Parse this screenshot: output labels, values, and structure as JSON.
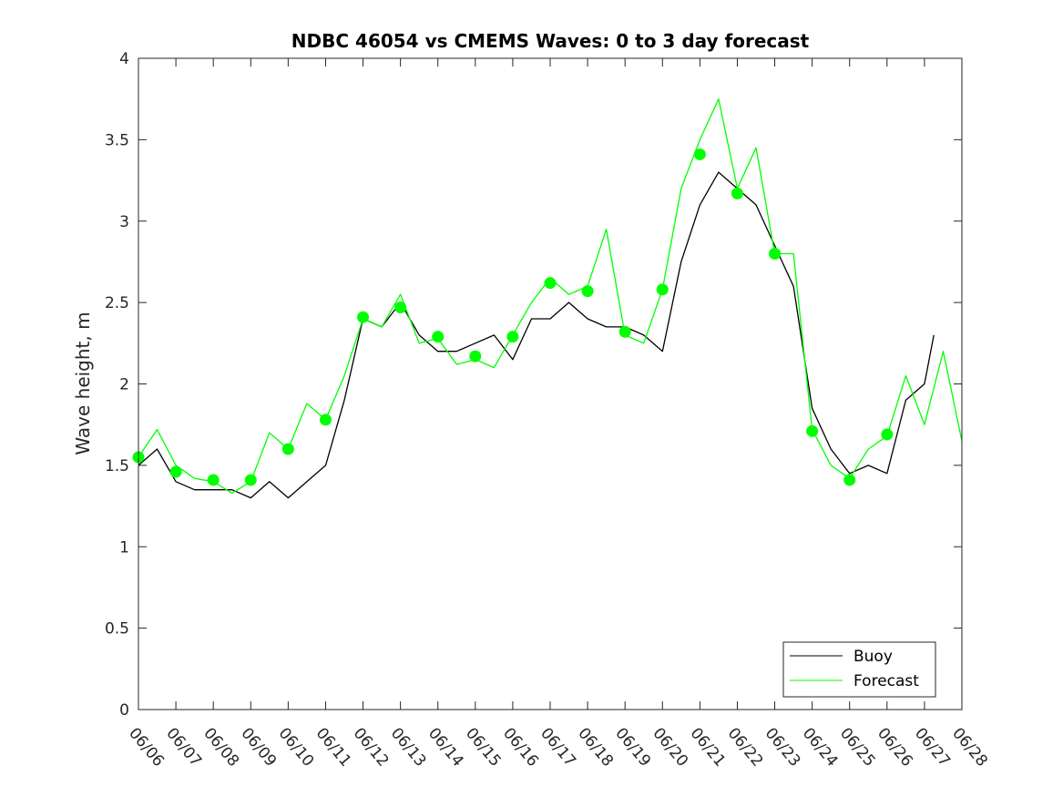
{
  "chart_data": {
    "type": "line",
    "title": "NDBC 46054 vs CMEMS Waves: 0 to 3 day forecast",
    "xlabel": "",
    "ylabel": "Wave height, m",
    "xlim": [
      "06/06",
      "06/28"
    ],
    "ylim": [
      0,
      4
    ],
    "x_ticks": [
      "06/06",
      "06/07",
      "06/08",
      "06/09",
      "06/10",
      "06/11",
      "06/12",
      "06/13",
      "06/14",
      "06/15",
      "06/16",
      "06/17",
      "06/18",
      "06/19",
      "06/20",
      "06/21",
      "06/22",
      "06/23",
      "06/24",
      "06/25",
      "06/26",
      "06/27",
      "06/28"
    ],
    "y_ticks": [
      "0",
      "0.5",
      "1",
      "1.5",
      "2",
      "2.5",
      "3",
      "3.5",
      "4"
    ],
    "grid": false,
    "legend_position": "bottom-right",
    "legend": [
      {
        "label": "Buoy",
        "color": "#000000"
      },
      {
        "label": "Forecast",
        "color": "#00ff00"
      }
    ],
    "series": [
      {
        "name": "Buoy",
        "color": "#000000",
        "x": [
          "06/06",
          "06/06 12:00",
          "06/07",
          "06/07 12:00",
          "06/08",
          "06/08 12:00",
          "06/09",
          "06/09 12:00",
          "06/10",
          "06/10 12:00",
          "06/11",
          "06/11 12:00",
          "06/12",
          "06/12 12:00",
          "06/13",
          "06/13 12:00",
          "06/14",
          "06/14 12:00",
          "06/15",
          "06/15 12:00",
          "06/16",
          "06/16 12:00",
          "06/17",
          "06/17 12:00",
          "06/18",
          "06/18 12:00",
          "06/19",
          "06/19 12:00",
          "06/20",
          "06/20 12:00",
          "06/21",
          "06/21 12:00",
          "06/22",
          "06/22 12:00",
          "06/23",
          "06/23 12:00",
          "06/24",
          "06/24 12:00",
          "06/25",
          "06/25 12:00",
          "06/26",
          "06/26 12:00",
          "06/27",
          "06/27 06:00"
        ],
        "y": [
          1.5,
          1.6,
          1.4,
          1.35,
          1.35,
          1.35,
          1.3,
          1.4,
          1.3,
          1.4,
          1.5,
          1.9,
          2.4,
          2.35,
          2.5,
          2.3,
          2.2,
          2.2,
          2.25,
          2.3,
          2.15,
          2.4,
          2.4,
          2.5,
          2.4,
          2.35,
          2.35,
          2.3,
          2.2,
          2.75,
          3.1,
          3.3,
          3.2,
          3.1,
          2.85,
          2.6,
          1.85,
          1.6,
          1.45,
          1.5,
          1.45,
          1.9,
          2.0,
          2.3
        ]
      },
      {
        "name": "Forecast",
        "color": "#00ff00",
        "x": [
          "06/06",
          "06/06 12:00",
          "06/07",
          "06/07 12:00",
          "06/08",
          "06/08 12:00",
          "06/09",
          "06/09 12:00",
          "06/10",
          "06/10 12:00",
          "06/11",
          "06/11 12:00",
          "06/12",
          "06/12 12:00",
          "06/13",
          "06/13 12:00",
          "06/14",
          "06/14 12:00",
          "06/15",
          "06/15 12:00",
          "06/16",
          "06/16 12:00",
          "06/17",
          "06/17 12:00",
          "06/18",
          "06/18 12:00",
          "06/19",
          "06/19 12:00",
          "06/20",
          "06/20 12:00",
          "06/21",
          "06/21 12:00",
          "06/22",
          "06/22 12:00",
          "06/23",
          "06/23 12:00",
          "06/24",
          "06/24 12:00",
          "06/25",
          "06/25 12:00",
          "06/26",
          "06/26 12:00",
          "06/27",
          "06/27 12:00",
          "06/28"
        ],
        "y": [
          1.55,
          1.72,
          1.5,
          1.42,
          1.4,
          1.33,
          1.4,
          1.7,
          1.6,
          1.88,
          1.78,
          2.05,
          2.4,
          2.35,
          2.55,
          2.25,
          2.28,
          2.12,
          2.15,
          2.1,
          2.3,
          2.5,
          2.65,
          2.55,
          2.6,
          2.95,
          2.3,
          2.25,
          2.58,
          3.2,
          3.5,
          3.75,
          3.2,
          3.45,
          2.8,
          2.8,
          1.72,
          1.5,
          1.42,
          1.6,
          1.68,
          2.05,
          1.75,
          2.2,
          1.65
        ]
      }
    ],
    "markers": {
      "color": "#00ff00",
      "x": [
        "06/06",
        "06/07",
        "06/08",
        "06/09",
        "06/10",
        "06/11",
        "06/12",
        "06/13",
        "06/14",
        "06/15",
        "06/16",
        "06/17",
        "06/18",
        "06/19",
        "06/20",
        "06/21",
        "06/22",
        "06/23",
        "06/24",
        "06/25",
        "06/26"
      ],
      "y": [
        1.55,
        1.46,
        1.41,
        1.41,
        1.6,
        1.78,
        2.41,
        2.47,
        2.29,
        2.17,
        2.29,
        2.62,
        2.57,
        2.32,
        2.58,
        3.41,
        3.17,
        2.8,
        1.71,
        1.41,
        1.69
      ]
    }
  }
}
